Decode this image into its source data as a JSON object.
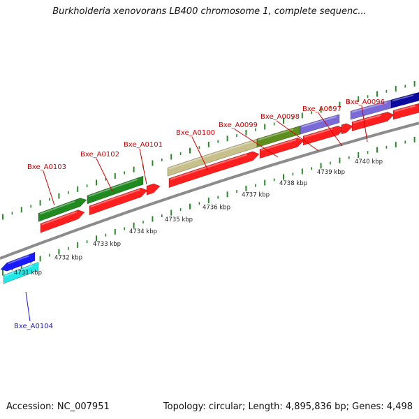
{
  "title": "Burkholderia xenovorans LB400 chromosome 1, complete sequenc...",
  "footer": {
    "accession": "Accession: NC_007951",
    "summary": "Topology: circular; Length: 4,895,836 bp; Genes: 4,498"
  },
  "colors": {
    "backbone": "#8c8c8c",
    "tick": "#2a8a2a",
    "forward_label": "#d40000",
    "reverse_label": "#1a1ad4",
    "red_gene": "#ff1f1f",
    "green_gene": "#1f8a1f",
    "olive_gene": "#5e8e1e",
    "khaki_gene": "#c7c08a",
    "purple_gene": "#7a6ad8",
    "navy_gene": "#0a0aa0",
    "blue_gene": "#1a1aff",
    "cyan_gene": "#20e8e8"
  },
  "scale_labels": [
    "4731 kbp",
    "4732 kbp",
    "4733 kbp",
    "4734 kbp",
    "4735 kbp",
    "4736 kbp",
    "4737 kbp",
    "4738 kbp",
    "4739 kbp",
    "4740 kbp"
  ],
  "gene_labels": [
    {
      "text": "Bxe_A0096",
      "strand": "forward"
    },
    {
      "text": "Bxe_A0097",
      "strand": "forward"
    },
    {
      "text": "Bxe_A0098",
      "strand": "forward"
    },
    {
      "text": "Bxe_A0099",
      "strand": "forward"
    },
    {
      "text": "Bxe_A0100",
      "strand": "forward"
    },
    {
      "text": "Bxe_A0101",
      "strand": "forward"
    },
    {
      "text": "Bxe_A0102",
      "strand": "forward"
    },
    {
      "text": "Bxe_A0103",
      "strand": "forward"
    },
    {
      "text": "Bxe_A0104",
      "strand": "reverse"
    }
  ]
}
